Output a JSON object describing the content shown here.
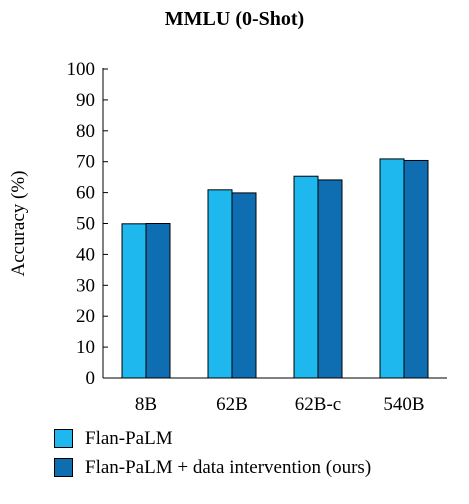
{
  "chart_data": {
    "type": "bar",
    "title": "MMLU (0-Shot)",
    "xlabel": "",
    "ylabel": "Accuracy (%)",
    "categories": [
      "8B",
      "62B",
      "62B-c",
      "540B"
    ],
    "series": [
      {
        "name": "Flan-PaLM",
        "color": "#1EB8EE",
        "values": [
          49.9,
          60.9,
          65.3,
          70.9
        ]
      },
      {
        "name": "Flan-PaLM + data intervention (ours)",
        "color": "#0F6EB2",
        "values": [
          50.0,
          59.9,
          64.1,
          70.4
        ]
      }
    ],
    "ylim": [
      0,
      100
    ],
    "yticks": [
      0,
      10,
      20,
      30,
      40,
      50,
      60,
      70,
      80,
      90,
      100
    ],
    "grid": false,
    "legend_position": "bottom"
  }
}
